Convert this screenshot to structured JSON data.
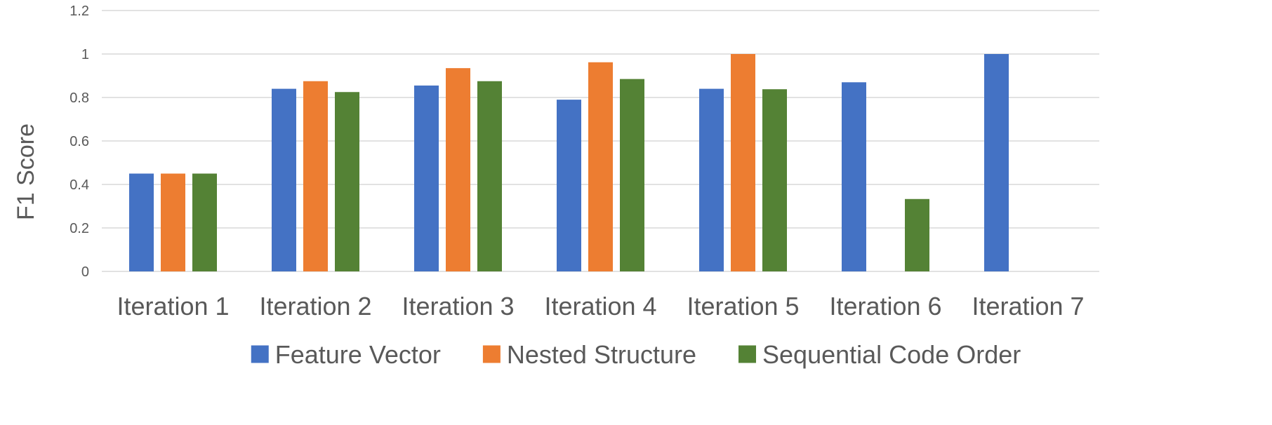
{
  "chart_data": {
    "type": "bar",
    "title": "",
    "xlabel": "",
    "ylabel": "F1 Score",
    "categories": [
      "Iteration 1",
      "Iteration 2",
      "Iteration 3",
      "Iteration 4",
      "Iteration 5",
      "Iteration 6",
      "Iteration 7"
    ],
    "series": [
      {
        "name": "Feature Vector",
        "color": "#4472C4",
        "values": [
          0.45,
          0.84,
          0.855,
          0.79,
          0.84,
          0.87,
          1.0
        ]
      },
      {
        "name": "Nested Structure",
        "color": "#ED7D31",
        "values": [
          0.45,
          0.875,
          0.935,
          0.962,
          1.0,
          null,
          null
        ]
      },
      {
        "name": "Sequential Code Order",
        "color": "#548235",
        "values": [
          0.45,
          0.825,
          0.875,
          0.885,
          0.838,
          0.333,
          null
        ]
      }
    ],
    "ylim": [
      0,
      1.2
    ],
    "yticks": [
      "0",
      "0.2",
      "0.4",
      "0.6",
      "0.8",
      "1",
      "1.2"
    ],
    "grid": true,
    "legend_position": "bottom"
  }
}
